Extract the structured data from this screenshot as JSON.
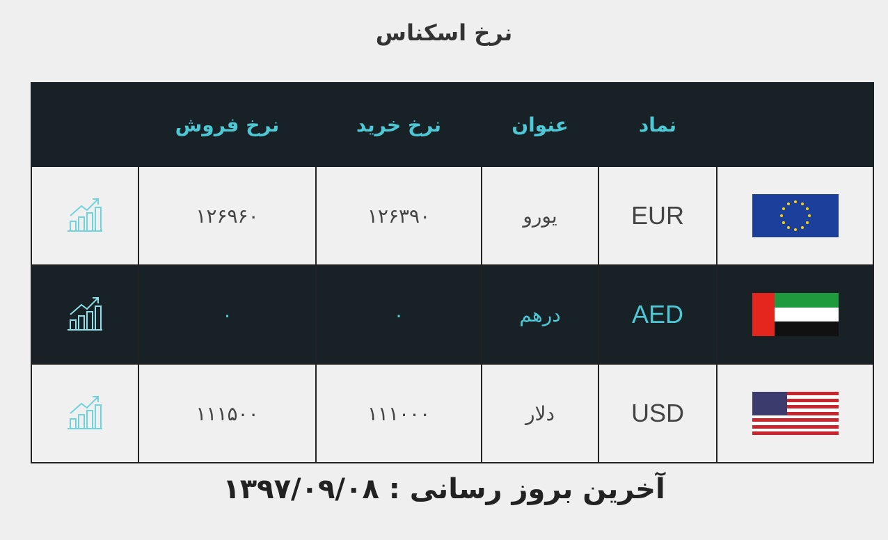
{
  "page_title": "نرخ اسکناس",
  "headers": {
    "chart": "",
    "sell": "نرخ فروش",
    "buy": "نرخ خرید",
    "name": "عنوان",
    "symbol": "نماد",
    "flag": ""
  },
  "rows": [
    {
      "symbol": "EUR",
      "name": "یورو",
      "buy": "۱۲۶۳۹۰",
      "sell": "۱۲۶۹۶۰",
      "flag_icon": "eu-flag-icon"
    },
    {
      "symbol": "AED",
      "name": "درهم",
      "buy": "۰",
      "sell": "۰",
      "flag_icon": "uae-flag-icon"
    },
    {
      "symbol": "USD",
      "name": "دلار",
      "buy": "۱۱۱۰۰۰",
      "sell": "۱۱۱۵۰۰",
      "flag_icon": "us-flag-icon"
    }
  ],
  "footer": "آخرین بروز رسانی : ۱۳۹۷/۰۹/۰۸",
  "colors": {
    "header_bg": "#172126",
    "accent": "#4fc8d6"
  }
}
